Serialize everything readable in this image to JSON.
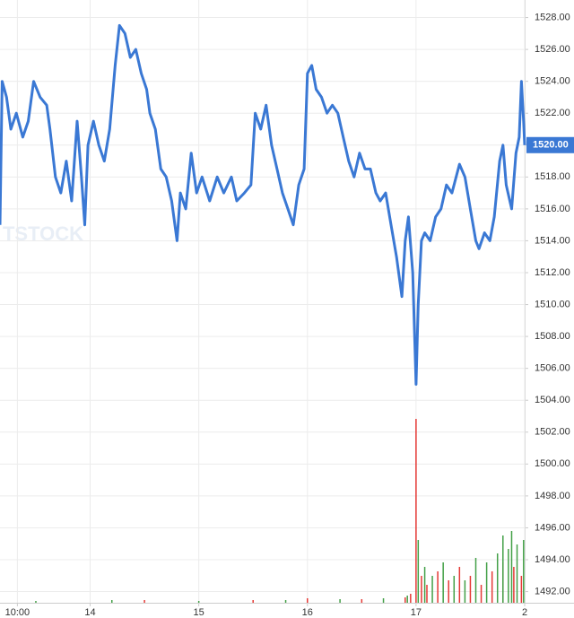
{
  "chart_data": {
    "type": "line",
    "watermark": "TSTOCK",
    "xlim": [
      0.17,
      5.0
    ],
    "xticks": [
      {
        "value": 0.33,
        "label": "10:00"
      },
      {
        "value": 1,
        "label": "14"
      },
      {
        "value": 2,
        "label": "15"
      },
      {
        "value": 3,
        "label": "16"
      },
      {
        "value": 4,
        "label": "17"
      },
      {
        "value": 5,
        "label": "2"
      }
    ],
    "ylim": [
      1491.3,
      1529.1
    ],
    "yticks": [
      {
        "value": 1492,
        "label": "1492.00"
      },
      {
        "value": 1494,
        "label": "1494.00"
      },
      {
        "value": 1496,
        "label": "1496.00"
      },
      {
        "value": 1498,
        "label": "1498.00"
      },
      {
        "value": 1500,
        "label": "1500.00"
      },
      {
        "value": 1502,
        "label": "1502.00"
      },
      {
        "value": 1504,
        "label": "1504.00"
      },
      {
        "value": 1506,
        "label": "1506.00"
      },
      {
        "value": 1508,
        "label": "1508.00"
      },
      {
        "value": 1510,
        "label": "1510.00"
      },
      {
        "value": 1512,
        "label": "1512.00"
      },
      {
        "value": 1514,
        "label": "1514.00"
      },
      {
        "value": 1516,
        "label": "1516.00"
      },
      {
        "value": 1518,
        "label": "1518.00"
      },
      {
        "value": 1520,
        "label": "1520.00"
      },
      {
        "value": 1522,
        "label": "1522.00"
      },
      {
        "value": 1524,
        "label": "1524.00"
      },
      {
        "value": 1526,
        "label": "1526.00"
      },
      {
        "value": 1528,
        "label": "1528.00"
      }
    ],
    "grid": true,
    "last_price": {
      "value": 1520,
      "label": "1520.00",
      "color": "#3a78d4"
    },
    "x": [
      0.17,
      0.19,
      0.23,
      0.27,
      0.32,
      0.38,
      0.43,
      0.48,
      0.54,
      0.6,
      0.63,
      0.68,
      0.73,
      0.78,
      0.83,
      0.88,
      0.92,
      0.95,
      0.98,
      1.03,
      1.08,
      1.13,
      1.18,
      1.23,
      1.27,
      1.32,
      1.37,
      1.42,
      1.47,
      1.52,
      1.55,
      1.6,
      1.65,
      1.7,
      1.75,
      1.8,
      1.83,
      1.88,
      1.93,
      1.98,
      2.03,
      2.1,
      2.17,
      2.23,
      2.3,
      2.35,
      2.42,
      2.48,
      2.52,
      2.57,
      2.62,
      2.67,
      2.72,
      2.77,
      2.82,
      2.87,
      2.92,
      2.97,
      3.0,
      3.04,
      3.08,
      3.13,
      3.18,
      3.23,
      3.28,
      3.33,
      3.38,
      3.43,
      3.48,
      3.53,
      3.58,
      3.63,
      3.67,
      3.72,
      3.77,
      3.82,
      3.87,
      3.9,
      3.93,
      3.97,
      4.0,
      4.02,
      4.05,
      4.08,
      4.13,
      4.18,
      4.23,
      4.28,
      4.33,
      4.4,
      4.45,
      4.5,
      4.55,
      4.58,
      4.63,
      4.68,
      4.72,
      4.77,
      4.8,
      4.83,
      4.88,
      4.92,
      4.95,
      4.97,
      4.99,
      5.0
    ],
    "series": [
      {
        "color": "#3a78d4",
        "values": [
          1515,
          1524,
          1523,
          1521,
          1522,
          1520.5,
          1521.5,
          1524,
          1523,
          1522.5,
          1521,
          1518,
          1517,
          1519,
          1516.5,
          1521.5,
          1518,
          1515,
          1520,
          1521.5,
          1520,
          1519,
          1521,
          1525,
          1527.5,
          1527,
          1525.5,
          1526,
          1524.5,
          1523.5,
          1522,
          1521,
          1518.5,
          1518,
          1516.5,
          1514,
          1517,
          1516,
          1519.5,
          1517,
          1518,
          1516.5,
          1518,
          1517,
          1518,
          1516.5,
          1517,
          1517.5,
          1522,
          1521,
          1522.5,
          1520,
          1518.5,
          1517,
          1516,
          1515,
          1517.5,
          1518.5,
          1524.5,
          1525,
          1523.5,
          1523,
          1522,
          1522.5,
          1522,
          1520.5,
          1519,
          1518,
          1519.5,
          1518.5,
          1518.5,
          1517,
          1516.5,
          1517,
          1515,
          1513,
          1510.5,
          1514,
          1515.5,
          1512,
          1505,
          1510,
          1514,
          1514.5,
          1514,
          1515.5,
          1516,
          1517.5,
          1517,
          1518.8,
          1518,
          1516,
          1514,
          1513.5,
          1514.5,
          1514,
          1515.5,
          1519,
          1520,
          1517.5,
          1516,
          1519.5,
          1520.5,
          1524,
          1521.5,
          1520
        ]
      }
    ],
    "volume_series": [
      {
        "color": "#e53935",
        "x": [
          1.5,
          2.5,
          3.0,
          3.5,
          3.9,
          3.95,
          4.0,
          4.05,
          4.1,
          4.2,
          4.3,
          4.4,
          4.5,
          4.6,
          4.7,
          4.8,
          4.9,
          4.97
        ],
        "values": [
          3,
          3,
          5,
          4,
          6,
          10,
          205,
          30,
          20,
          35,
          25,
          40,
          30,
          20,
          35,
          45,
          40,
          30
        ]
      },
      {
        "color": "#43a047",
        "x": [
          0.5,
          1.2,
          2.0,
          2.8,
          3.3,
          3.7,
          3.92,
          4.02,
          4.08,
          4.15,
          4.25,
          4.35,
          4.45,
          4.55,
          4.65,
          4.75,
          4.8,
          4.85,
          4.88,
          4.93,
          4.99
        ],
        "values": [
          2,
          3,
          2,
          3,
          4,
          5,
          8,
          70,
          40,
          30,
          45,
          30,
          25,
          50,
          45,
          55,
          75,
          60,
          80,
          65,
          70
        ]
      }
    ]
  }
}
